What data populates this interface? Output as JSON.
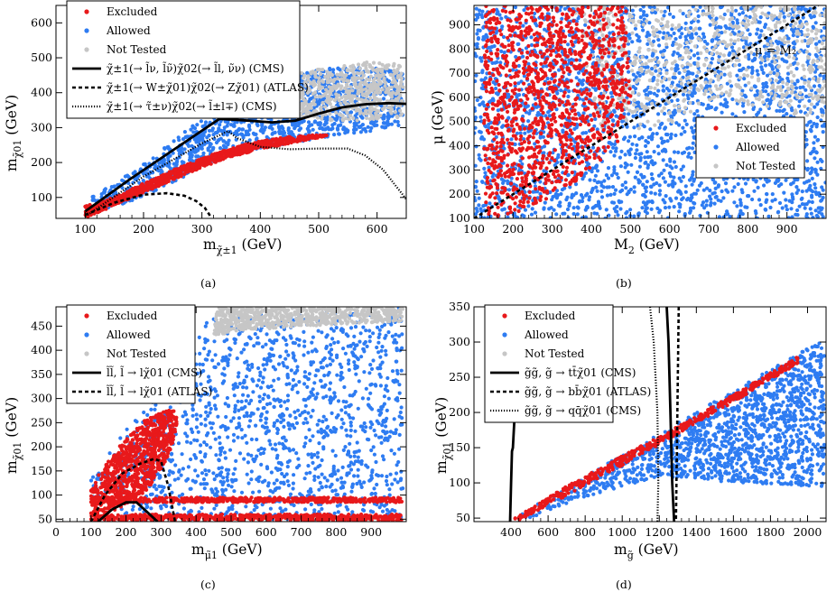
{
  "figure": {
    "colors": {
      "excluded": "#e8191b",
      "allowed": "#2e7cf2",
      "not_tested": "#c6c6c6",
      "frame": "#000000"
    },
    "marker_labels": [
      "Excluded",
      "Allowed",
      "Not Tested"
    ]
  },
  "chart_data": [
    {
      "panel": "a",
      "caption": "(a)",
      "type": "scatter",
      "xlabel": "m(chargino-1) (GeV)",
      "ylabel": "m(neutralino-1) (GeV)",
      "xlim": [
        50,
        650
      ],
      "ylim": [
        40,
        650
      ],
      "xticks": [
        100,
        200,
        300,
        400,
        500,
        600
      ],
      "yticks": [
        100,
        200,
        300,
        400,
        500,
        600
      ],
      "legend_position": "top-left",
      "regions": {
        "not_tested": [
          [
            330,
            380
          ],
          [
            400,
            420
          ],
          [
            470,
            460
          ],
          [
            540,
            480
          ],
          [
            600,
            490
          ],
          [
            645,
            480
          ],
          [
            645,
            330
          ],
          [
            580,
            320
          ],
          [
            520,
            320
          ],
          [
            460,
            330
          ],
          [
            400,
            345
          ],
          [
            350,
            335
          ]
        ],
        "allowed": [
          [
            100,
            50
          ],
          [
            100,
            90
          ],
          [
            160,
            150
          ],
          [
            250,
            260
          ],
          [
            310,
            340
          ],
          [
            360,
            400
          ],
          [
            410,
            440
          ],
          [
            470,
            460
          ],
          [
            540,
            475
          ],
          [
            600,
            470
          ],
          [
            645,
            460
          ],
          [
            645,
            300
          ],
          [
            560,
            285
          ],
          [
            500,
            270
          ],
          [
            420,
            245
          ],
          [
            360,
            230
          ],
          [
            300,
            185
          ],
          [
            240,
            135
          ],
          [
            180,
            90
          ],
          [
            130,
            60
          ]
        ],
        "excluded": [
          [
            100,
            42
          ],
          [
            100,
            75
          ],
          [
            150,
            100
          ],
          [
            200,
            140
          ],
          [
            260,
            185
          ],
          [
            320,
            225
          ],
          [
            380,
            255
          ],
          [
            440,
            272
          ],
          [
            500,
            280
          ],
          [
            520,
            278
          ],
          [
            470,
            262
          ],
          [
            400,
            238
          ],
          [
            340,
            212
          ],
          [
            280,
            172
          ],
          [
            220,
            128
          ],
          [
            160,
            85
          ],
          [
            120,
            55
          ]
        ]
      },
      "series": [
        {
          "name": "chargino -> slepton/sneutrino (CMS)",
          "legend": "χ̃±1(→ l̃ν, l̃ν̃)χ̃02(→ l̃l, ν̃ν) (CMS)",
          "style": "solid",
          "x": [
            100,
            175,
            250,
            330,
            380,
            420,
            460,
            500,
            540,
            580,
            620,
            650
          ],
          "y": [
            60,
            150,
            235,
            325,
            320,
            315,
            320,
            340,
            358,
            367,
            370,
            368
          ]
        },
        {
          "name": "chargino -> W neutralino (ATLAS)",
          "legend": "χ̃±1(→ W±χ̃01)χ̃02(→ Zχ̃01) (ATLAS)",
          "style": "dashed",
          "x": [
            100,
            150,
            200,
            240,
            270,
            290,
            305,
            315
          ],
          "y": [
            50,
            85,
            108,
            112,
            105,
            90,
            70,
            45
          ]
        },
        {
          "name": "chargino -> stau nu (CMS)",
          "legend": "χ̃±1(→ τ̃±ν)χ̃02(→ l̃±l∓) (CMS)",
          "style": "dotted",
          "x": [
            100,
            200,
            300,
            345,
            360,
            400,
            450,
            500,
            550,
            580,
            610,
            650
          ],
          "y": [
            45,
            160,
            255,
            290,
            270,
            245,
            238,
            240,
            240,
            220,
            180,
            95
          ]
        }
      ]
    },
    {
      "panel": "b",
      "caption": "(b)",
      "type": "scatter",
      "xlabel": "M2 (GeV)",
      "ylabel": "μ (GeV)",
      "xlim": [
        100,
        1000
      ],
      "ylim": [
        100,
        980
      ],
      "xticks": [
        100,
        200,
        300,
        400,
        500,
        600,
        700,
        800,
        900
      ],
      "yticks": [
        100,
        200,
        300,
        400,
        500,
        600,
        700,
        800,
        900
      ],
      "legend_position": "center-right",
      "annotation": "μ = M2",
      "regions": {
        "allowed_full": [
          [
            100,
            100
          ],
          [
            1000,
            100
          ],
          [
            1000,
            980
          ],
          [
            100,
            980
          ]
        ],
        "not_tested": [
          [
            350,
            980
          ],
          [
            1000,
            980
          ],
          [
            1000,
            520
          ],
          [
            860,
            540
          ],
          [
            720,
            600
          ],
          [
            620,
            500
          ],
          [
            520,
            470
          ],
          [
            430,
            430
          ]
        ],
        "excluded": [
          [
            125,
            980
          ],
          [
            490,
            980
          ],
          [
            500,
            600
          ],
          [
            470,
            420
          ],
          [
            400,
            300
          ],
          [
            330,
            220
          ],
          [
            250,
            150
          ],
          [
            180,
            110
          ],
          [
            125,
            105
          ]
        ]
      },
      "series": [
        {
          "name": "μ = M2",
          "style": "dashed",
          "x": [
            100,
            980
          ],
          "y": [
            100,
            980
          ]
        }
      ]
    },
    {
      "panel": "c",
      "caption": "(c)",
      "type": "scatter",
      "xlabel": "m(smuon) (GeV)",
      "ylabel": "m(neutralino-1) (GeV)",
      "xlim": [
        0,
        1000
      ],
      "ylim": [
        45,
        490
      ],
      "xticks": [
        0,
        100,
        200,
        300,
        400,
        500,
        600,
        700,
        800,
        900
      ],
      "yticks": [
        50,
        100,
        150,
        200,
        250,
        300,
        350,
        400,
        450
      ],
      "legend_position": "top-left",
      "regions": {
        "not_tested": [
          [
            460,
            490
          ],
          [
            990,
            490
          ],
          [
            990,
            460
          ],
          [
            700,
            450
          ],
          [
            520,
            440
          ],
          [
            450,
            430
          ]
        ],
        "allowed": [
          [
            100,
            55
          ],
          [
            100,
            140
          ],
          [
            200,
            240
          ],
          [
            300,
            330
          ],
          [
            380,
            400
          ],
          [
            440,
            470
          ],
          [
            990,
            490
          ],
          [
            990,
            50
          ],
          [
            100,
            50
          ]
        ],
        "excluded_main": [
          [
            100,
            60
          ],
          [
            100,
            120
          ],
          [
            180,
            200
          ],
          [
            260,
            260
          ],
          [
            330,
            280
          ],
          [
            350,
            260
          ],
          [
            330,
            200
          ],
          [
            300,
            150
          ],
          [
            260,
            110
          ],
          [
            200,
            80
          ],
          [
            140,
            60
          ]
        ],
        "excluded_band": [
          [
            100,
            85
          ],
          [
            100,
            95
          ],
          [
            990,
            95
          ],
          [
            990,
            85
          ]
        ],
        "excluded_low": [
          [
            100,
            47
          ],
          [
            100,
            60
          ],
          [
            990,
            60
          ],
          [
            990,
            47
          ]
        ]
      },
      "series": [
        {
          "name": "smuon -> mu neutralino (CMS)",
          "legend": "l̃l̃, l̃ → lχ̃01 (CMS)",
          "style": "solid",
          "x": [
            120,
            160,
            200,
            230,
            260,
            290
          ],
          "y": [
            45,
            70,
            85,
            85,
            65,
            45
          ]
        },
        {
          "name": "smuon -> mu neutralino (ATLAS)",
          "legend": "l̃l̃, l̃ → lχ̃01 (ATLAS)",
          "style": "dashed",
          "x": [
            100,
            140,
            190,
            240,
            280,
            300,
            320,
            340
          ],
          "y": [
            45,
            100,
            145,
            165,
            175,
            170,
            120,
            45
          ]
        }
      ]
    },
    {
      "panel": "d",
      "caption": "(d)",
      "type": "scatter",
      "xlabel": "m(gluino) (GeV)",
      "ylabel": "m(neutralino-1) (GeV)",
      "xlim": [
        200,
        2100
      ],
      "ylim": [
        45,
        350
      ],
      "xticks": [
        400,
        600,
        800,
        1000,
        1200,
        1400,
        1600,
        1800,
        2000
      ],
      "yticks": [
        50,
        100,
        150,
        200,
        250,
        300,
        350
      ],
      "legend_position": "top-left",
      "regions": {
        "allowed": [
          [
            410,
            50
          ],
          [
            1200,
            170
          ],
          [
            2090,
            305
          ],
          [
            2090,
            95
          ],
          [
            1600,
            100
          ],
          [
            1200,
            110
          ],
          [
            800,
            80
          ],
          [
            500,
            50
          ]
        ],
        "excluded": [
          [
            410,
            48
          ],
          [
            700,
            95
          ],
          [
            1000,
            138
          ],
          [
            1300,
            180
          ],
          [
            1600,
            225
          ],
          [
            1950,
            280
          ],
          [
            1950,
            270
          ],
          [
            1600,
            215
          ],
          [
            1300,
            170
          ],
          [
            1000,
            125
          ],
          [
            700,
            82
          ],
          [
            450,
            48
          ]
        ]
      },
      "series": [
        {
          "name": "gluino -> tt neutralino (CMS)",
          "legend": "g̃g̃, g̃ → tt̄χ̃01 (CMS)",
          "style": "solid",
          "x": [
            395,
            400,
            405,
            410,
            420,
            435
          ],
          "y": [
            45,
            100,
            145,
            150,
            200,
            260
          ]
        },
        {
          "name": "gluino -> tt neutralino (CMS) upper",
          "legend": "",
          "style": "solid",
          "x": [
            1240,
            1250,
            1260,
            1270,
            1280
          ],
          "y": [
            350,
            300,
            200,
            100,
            45
          ]
        },
        {
          "name": "gluino -> bb neutralino (ATLAS)",
          "legend": "g̃g̃, g̃ → bb̄χ̃01 (ATLAS)",
          "style": "dashed",
          "x": [
            1305,
            1300,
            1295,
            1290
          ],
          "y": [
            350,
            250,
            150,
            45
          ]
        },
        {
          "name": "gluino -> qq neutralino (CMS)",
          "legend": "g̃g̃, g̃ → qq̄χ̃01 (CMS)",
          "style": "dotted",
          "x": [
            1150,
            1170,
            1190,
            1195,
            1190
          ],
          "y": [
            350,
            300,
            200,
            100,
            45
          ]
        }
      ]
    }
  ],
  "axis_text": {
    "a_x_main": "m",
    "a_x_sub": "χ̃±1",
    "a_x_unit": " (GeV)",
    "a_y_main": "m",
    "a_y_sub": "χ̃01",
    "a_y_unit": " (GeV)",
    "b_x": "M",
    "b_x_sub": "2",
    "b_x_unit": " (GeV)",
    "b_y": "μ (GeV)",
    "c_x_main": "m",
    "c_x_sub": "μ̃1",
    "c_x_unit": " (GeV)",
    "c_y_main": "m",
    "c_y_sub": "χ̃01",
    "c_y_unit": " (GeV)",
    "d_x_main": "m",
    "d_x_sub": "g̃",
    "d_x_unit": " (GeV)",
    "d_y_main": "m",
    "d_y_sub": "χ̃01",
    "d_y_unit": " (GeV)",
    "b_annotation": "μ = M₂"
  }
}
